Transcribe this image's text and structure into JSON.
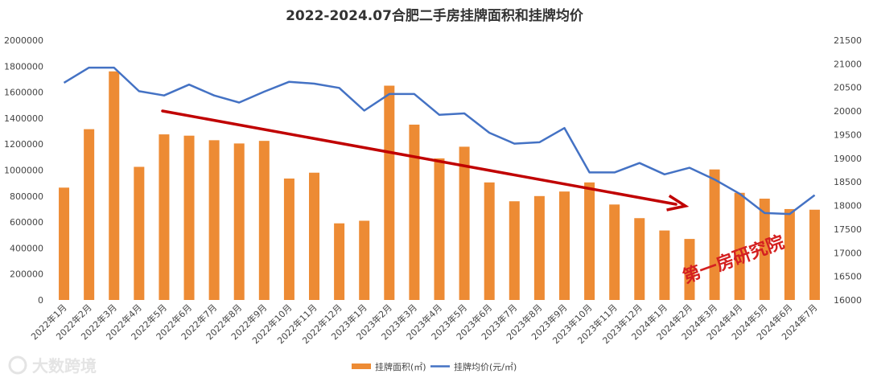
{
  "chart_data": {
    "type": "bar+line",
    "title": "2022-2024.07合肥二手房挂牌面积和挂牌均价",
    "categories": [
      "2022年1月",
      "2022年2月",
      "2022年3月",
      "2022年4月",
      "2022年5月",
      "2022年6月",
      "2022年7月",
      "2022年8月",
      "2022年9月",
      "2022年10月",
      "2022年11月",
      "2022年12月",
      "2023年1月",
      "2023年2月",
      "2023年3月",
      "2023年4月",
      "2023年5月",
      "2023年6月",
      "2023年7月",
      "2023年8月",
      "2023年9月",
      "2023年10月",
      "2023年11月",
      "2023年12月",
      "2024年1月",
      "2024年2月",
      "2024年3月",
      "2024年4月",
      "2024年5月",
      "2024年6月",
      "2024年7月"
    ],
    "series": [
      {
        "name": "挂牌面积(㎡)",
        "type": "bar",
        "axis": "left",
        "color": "#ED8B34",
        "values": [
          865000,
          1315000,
          1760000,
          1025000,
          1275000,
          1265000,
          1230000,
          1205000,
          1225000,
          935000,
          980000,
          590000,
          610000,
          1650000,
          1350000,
          1090000,
          1180000,
          905000,
          760000,
          800000,
          835000,
          905000,
          735000,
          630000,
          535000,
          470000,
          1005000,
          825000,
          780000,
          700000,
          695000
        ]
      },
      {
        "name": "挂牌均价(元/㎡)",
        "type": "line",
        "axis": "right",
        "color": "#4472C4",
        "values": [
          20600,
          20920,
          20920,
          20420,
          20330,
          20560,
          20330,
          20180,
          20410,
          20620,
          20580,
          20490,
          20010,
          20360,
          20360,
          19920,
          19950,
          19540,
          19310,
          19340,
          19640,
          18700,
          18700,
          18900,
          18660,
          18800,
          18550,
          18250,
          17840,
          17820,
          18220
        ]
      }
    ],
    "y_left": {
      "min": 0,
      "max": 2000000,
      "step": 200000,
      "ticks": [
        "0",
        "200000",
        "400000",
        "600000",
        "800000",
        "1000000",
        "1200000",
        "1400000",
        "1600000",
        "1800000",
        "2000000"
      ]
    },
    "y_right": {
      "min": 16000,
      "max": 21500,
      "step": 500,
      "ticks": [
        "16000",
        "16500",
        "17000",
        "17500",
        "18000",
        "18500",
        "19000",
        "19500",
        "20000",
        "20500",
        "21000",
        "21500"
      ]
    },
    "annotations": {
      "trend_arrow_color": "#C00000",
      "stamp_text": "第一房研究院"
    },
    "legend": {
      "position": "bottom"
    },
    "watermark": "大数跨境"
  }
}
